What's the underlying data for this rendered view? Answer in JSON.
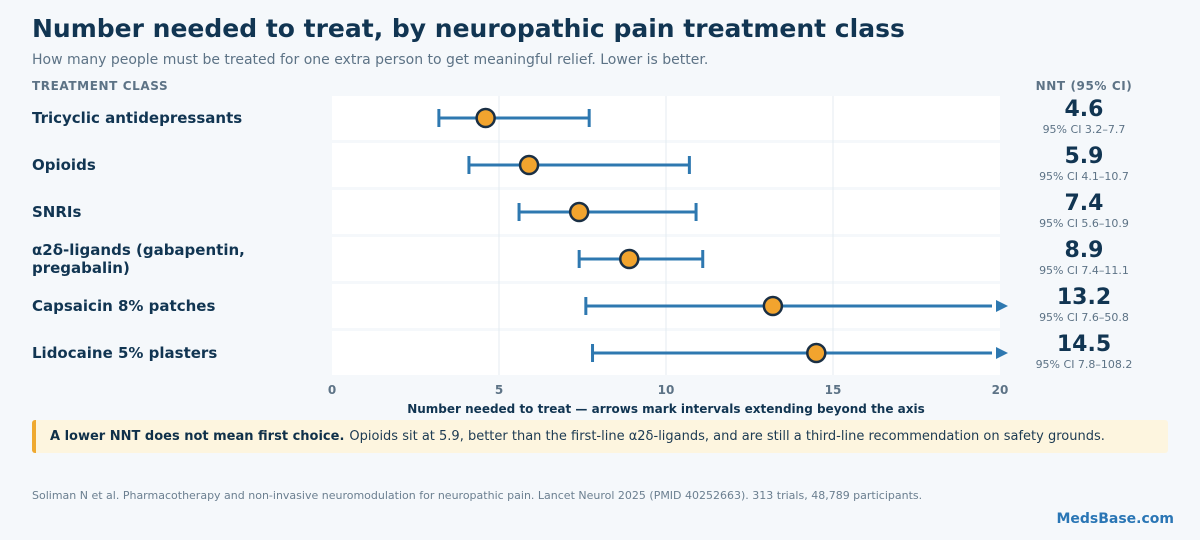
{
  "header": {
    "title": "Number needed to treat, by neuropathic pain treatment class",
    "subtitle": "How many people must be treated for one extra person to get meaningful relief. Lower is better.",
    "left_column_heading": "TREATMENT CLASS",
    "right_column_heading": "NNT (95% CI)"
  },
  "callout": {
    "bold": "A lower NNT does not mean first choice.",
    "text": "Opioids sit at 5.9, better than the first-line α2δ-ligands, and are still a third-line recommendation on safety grounds."
  },
  "source": "Soliman N et al. Pharmacotherapy and non-invasive neuromodulation for neuropathic pain. Lancet Neurol 2025 (PMID 40252663). 313 trials, 48,789 participants.",
  "brand": "MedsBase.com",
  "colors": {
    "point_fill": "#f2a42e",
    "point_stroke": "#1a2f44",
    "interval": "#2e78b0",
    "row_band": "#ffffff",
    "gridline": "#e4ebf1"
  },
  "chart_data": {
    "type": "forest",
    "xlabel": "Number needed to treat — arrows mark intervals extending beyond the axis",
    "xlim": [
      0,
      20
    ],
    "xticks": [
      0,
      5,
      10,
      15,
      20
    ],
    "rows": [
      {
        "label": "Tricyclic antidepressants",
        "nnt": 4.6,
        "ci_low": 3.2,
        "ci_high": 7.7,
        "ci_text": "95% CI 3.2–7.7"
      },
      {
        "label": "Opioids",
        "nnt": 5.9,
        "ci_low": 4.1,
        "ci_high": 10.7,
        "ci_text": "95% CI 4.1–10.7"
      },
      {
        "label": "SNRIs",
        "nnt": 7.4,
        "ci_low": 5.6,
        "ci_high": 10.9,
        "ci_text": "95% CI 5.6–10.9"
      },
      {
        "label": "α2δ-ligands (gabapentin, pregabalin)",
        "nnt": 8.9,
        "ci_low": 7.4,
        "ci_high": 11.1,
        "ci_text": "95% CI 7.4–11.1"
      },
      {
        "label": "Capsaicin 8% patches",
        "nnt": 13.2,
        "ci_low": 7.6,
        "ci_high": 50.8,
        "ci_text": "95% CI 7.6–50.8"
      },
      {
        "label": "Lidocaine 5% plasters",
        "nnt": 14.5,
        "ci_low": 7.8,
        "ci_high": 108.2,
        "ci_text": "95% CI 7.8–108.2"
      }
    ]
  }
}
